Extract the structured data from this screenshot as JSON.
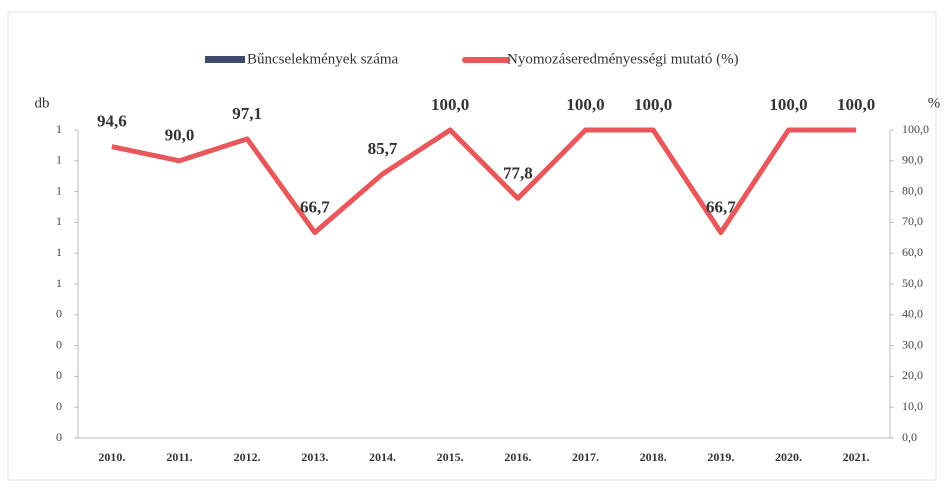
{
  "chart_data": {
    "type": "bar_line",
    "categories": [
      "2010.",
      "2011.",
      "2012.",
      "2013.",
      "2014.",
      "2015.",
      "2016.",
      "2017.",
      "2018.",
      "2019.",
      "2020.",
      "2021."
    ],
    "y_label": "db",
    "y2_label": "%",
    "series": [
      {
        "name": "Bűncselekmények száma",
        "color": "#3d4a6b",
        "type": "bar",
        "values": [
          0,
          0,
          0,
          0,
          0,
          0,
          0,
          0,
          0,
          0,
          0,
          0
        ]
      },
      {
        "name": "Nyomozáseredményességi mutató (%)",
        "color": "#e8575a",
        "type": "line",
        "axis": "y2",
        "values": [
          94.6,
          90.0,
          97.1,
          66.7,
          85.7,
          100.0,
          77.8,
          100.0,
          100.0,
          66.7,
          100.0,
          100.0
        ],
        "value_labels": [
          "94,6",
          "90,0",
          "97,1",
          "66,7",
          "85,7",
          "100,0",
          "77,8",
          "100,0",
          "100,0",
          "66,7",
          "100,0",
          "100,0"
        ]
      }
    ],
    "ylim": [
      0,
      1
    ],
    "yticks": [
      0,
      {
        "value": 0.1,
        "label": "0"
      },
      {
        "value": 0.2,
        "label": "0"
      },
      {
        "value": 0.3,
        "label": "0"
      },
      {
        "value": 0.4,
        "label": "0"
      },
      {
        "value": 0.5,
        "label": "1"
      },
      {
        "value": 0.6,
        "label": "1"
      },
      {
        "value": 0.7,
        "label": "1"
      },
      {
        "value": 0.8,
        "label": "1"
      },
      {
        "value": 0.9,
        "label": "1"
      },
      1
    ],
    "y2lim": [
      0,
      100
    ],
    "y2ticks": [
      {
        "value": 0,
        "label": "0,0"
      },
      {
        "value": 10,
        "label": "10,0"
      },
      {
        "value": 20,
        "label": "20,0"
      },
      {
        "value": 30,
        "label": "30,0"
      },
      {
        "value": 40,
        "label": "40,0"
      },
      {
        "value": 50,
        "label": "50,0"
      },
      {
        "value": 60,
        "label": "60,0"
      },
      {
        "value": 70,
        "label": "70,0"
      },
      {
        "value": 80,
        "label": "80,0"
      },
      {
        "value": 90,
        "label": "90,0"
      },
      {
        "value": 100,
        "label": "100,0"
      }
    ],
    "legend": "top"
  }
}
